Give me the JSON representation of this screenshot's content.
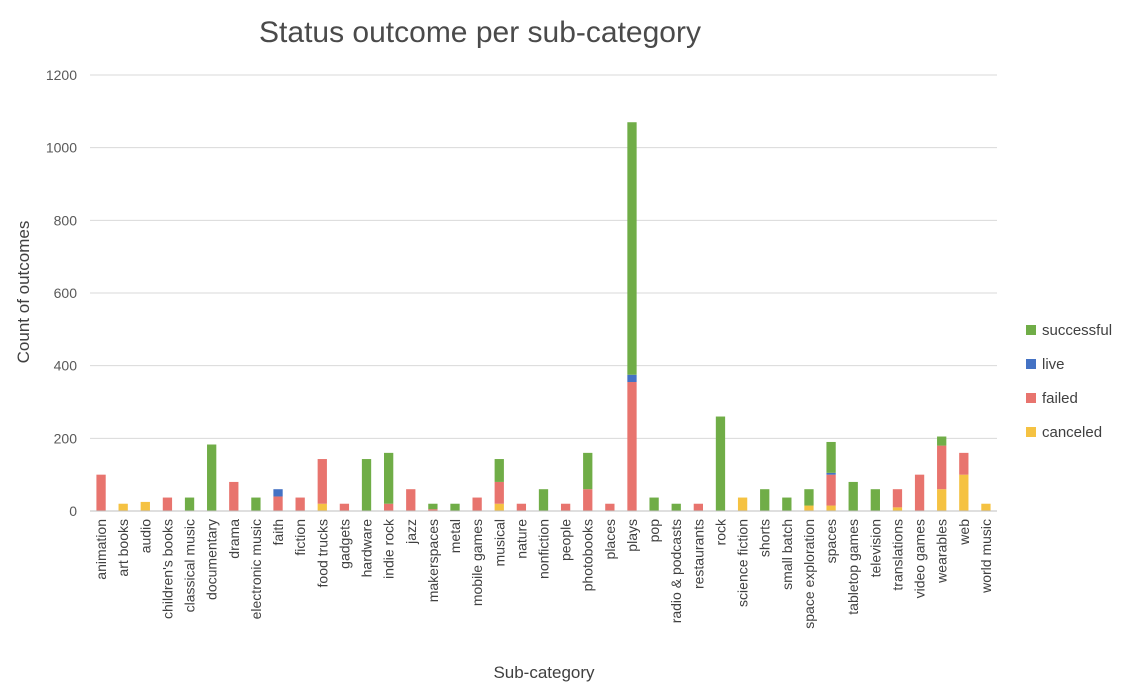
{
  "chart_data": {
    "type": "bar",
    "stacked": true,
    "title": "Status outcome per sub-category",
    "xlabel": "Sub-category",
    "ylabel": "Count of outcomes",
    "ylim": [
      0,
      1200
    ],
    "yticks": [
      "0",
      "200",
      "400",
      "600",
      "800",
      "1000",
      "1200"
    ],
    "grid": true,
    "legend_position": "right",
    "categories": [
      "animation",
      "art books",
      "audio",
      "children's books",
      "classical music",
      "documentary",
      "drama",
      "electronic music",
      "faith",
      "fiction",
      "food trucks",
      "gadgets",
      "hardware",
      "indie rock",
      "jazz",
      "makerspaces",
      "metal",
      "mobile games",
      "musical",
      "nature",
      "nonfiction",
      "people",
      "photobooks",
      "places",
      "plays",
      "pop",
      "radio & podcasts",
      "restaurants",
      "rock",
      "science fiction",
      "shorts",
      "small batch",
      "space exploration",
      "spaces",
      "tabletop games",
      "television",
      "translations",
      "video games",
      "wearables",
      "web",
      "world music"
    ],
    "series": [
      {
        "name": "canceled",
        "color": "#f5c242",
        "values": [
          0,
          20,
          25,
          0,
          0,
          0,
          0,
          0,
          0,
          0,
          20,
          0,
          0,
          0,
          0,
          0,
          0,
          0,
          20,
          0,
          0,
          0,
          0,
          0,
          0,
          0,
          0,
          0,
          0,
          37,
          0,
          0,
          15,
          15,
          0,
          0,
          10,
          0,
          60,
          100,
          20
        ]
      },
      {
        "name": "failed",
        "color": "#e8746e",
        "values": [
          100,
          0,
          0,
          37,
          0,
          0,
          80,
          0,
          40,
          37,
          123,
          20,
          0,
          20,
          60,
          5,
          0,
          37,
          60,
          20,
          0,
          20,
          60,
          20,
          355,
          0,
          0,
          20,
          0,
          0,
          0,
          0,
          0,
          85,
          0,
          0,
          50,
          100,
          120,
          60,
          0
        ]
      },
      {
        "name": "live",
        "color": "#4472c4",
        "values": [
          0,
          0,
          0,
          0,
          0,
          0,
          0,
          0,
          20,
          0,
          0,
          0,
          0,
          0,
          0,
          0,
          0,
          0,
          0,
          0,
          0,
          0,
          0,
          0,
          20,
          0,
          0,
          0,
          0,
          0,
          0,
          0,
          0,
          5,
          0,
          0,
          0,
          0,
          0,
          0,
          0
        ]
      },
      {
        "name": "successful",
        "color": "#70ad47",
        "values": [
          0,
          0,
          0,
          0,
          37,
          183,
          0,
          37,
          0,
          0,
          0,
          0,
          143,
          140,
          0,
          15,
          20,
          0,
          63,
          0,
          60,
          0,
          100,
          0,
          695,
          37,
          20,
          0,
          260,
          0,
          60,
          37,
          45,
          85,
          80,
          60,
          0,
          0,
          25,
          0,
          0
        ]
      }
    ],
    "legend_order": [
      "successful",
      "live",
      "failed",
      "canceled"
    ]
  }
}
